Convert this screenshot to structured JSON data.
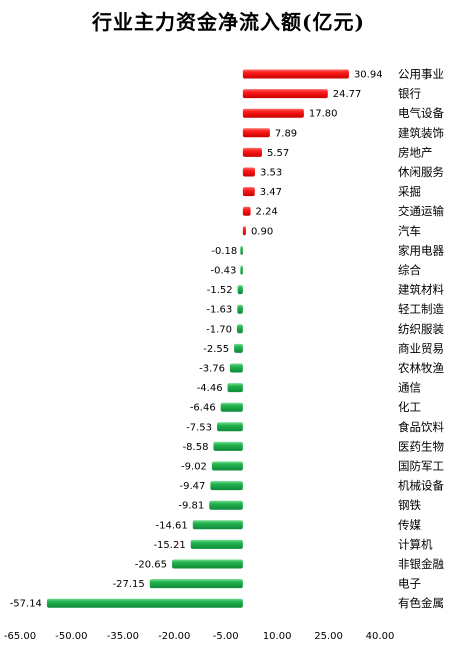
{
  "chart_data": {
    "type": "bar",
    "orientation": "horizontal",
    "title": "行业主力资金净流入额(亿元)",
    "categories": [
      "公用事业",
      "银行",
      "电气设备",
      "建筑装饰",
      "房地产",
      "休闲服务",
      "采掘",
      "交通运输",
      "汽车",
      "家用电器",
      "综合",
      "建筑材料",
      "轻工制造",
      "纺织服装",
      "商业贸易",
      "农林牧渔",
      "通信",
      "化工",
      "食品饮料",
      "医药生物",
      "国防军工",
      "机械设备",
      "钢铁",
      "传媒",
      "计算机",
      "非银金融",
      "电子",
      "有色金属"
    ],
    "values": [
      30.94,
      24.77,
      17.8,
      7.89,
      5.57,
      3.53,
      3.47,
      2.24,
      0.9,
      -0.18,
      -0.43,
      -1.52,
      -1.63,
      -1.7,
      -2.55,
      -3.76,
      -4.46,
      -6.46,
      -7.53,
      -8.58,
      -9.02,
      -9.47,
      -9.81,
      -14.61,
      -15.21,
      -20.65,
      -27.15,
      -57.14
    ],
    "value_labels": [
      "30.94",
      "24.77",
      "17.80",
      "7.89",
      "5.57",
      "3.53",
      "3.47",
      "2.24",
      "0.90",
      "-0.18",
      "-0.43",
      "-1.52",
      "-1.63",
      "-1.70",
      "-2.55",
      "-3.76",
      "-4.46",
      "-6.46",
      "-7.53",
      "-8.58",
      "-9.02",
      "-9.47",
      "-9.81",
      "-14.61",
      "-15.21",
      "-20.65",
      "-27.15",
      "-57.14"
    ],
    "x_ticks": [
      -65,
      -50,
      -35,
      -20,
      -5,
      10,
      25,
      40
    ],
    "x_tick_labels": [
      "-65.00",
      "-50.00",
      "-35.00",
      "-20.00",
      "-5.00",
      "10.00",
      "25.00",
      "40.00"
    ],
    "xlim": [
      -65,
      40
    ],
    "grid": false,
    "legend": "none",
    "colors": {
      "positive": "#ee1111",
      "negative": "#1faa4f"
    }
  }
}
